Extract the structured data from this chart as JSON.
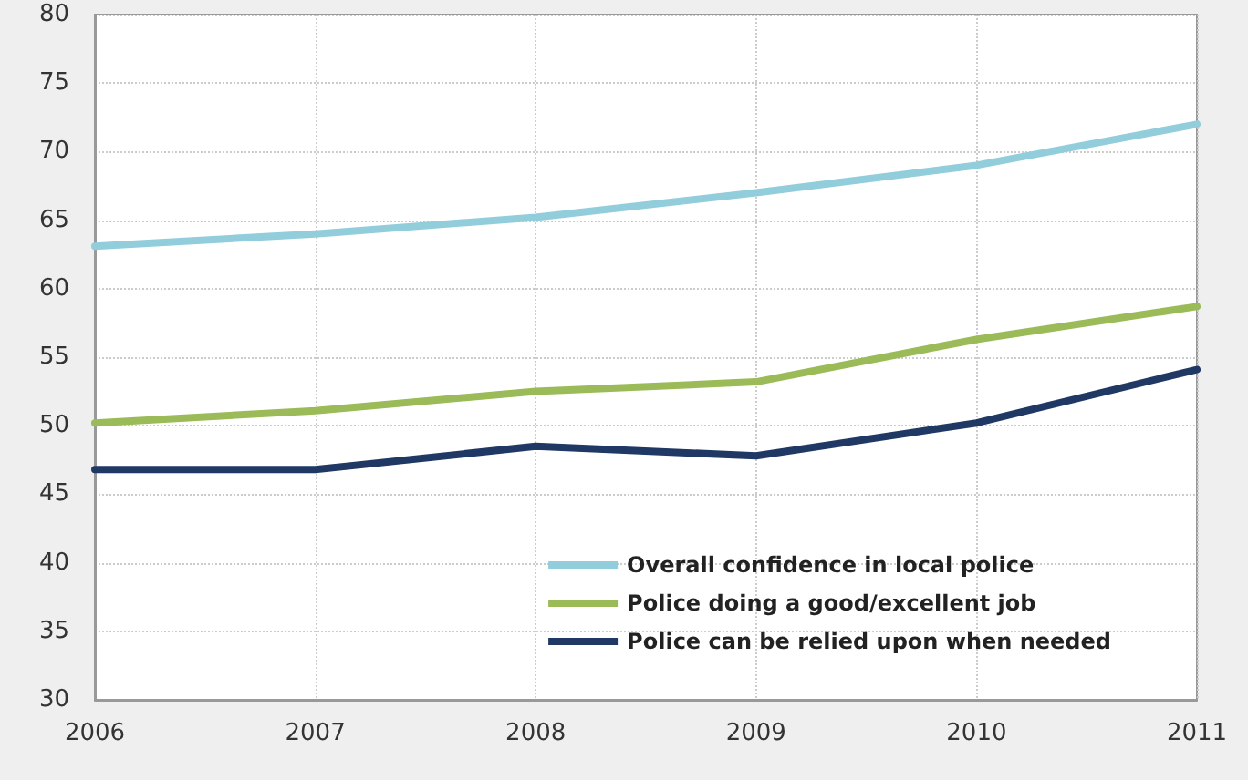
{
  "chart_data": {
    "type": "line",
    "x": [
      2006,
      2007,
      2008,
      2009,
      2010,
      2011
    ],
    "series": [
      {
        "name": "Overall confidence in local police",
        "color": "#92cddc",
        "values": [
          63.1,
          64,
          65.2,
          67,
          69,
          72
        ]
      },
      {
        "name": "Police doing a good/excellent job",
        "color": "#9bbb59",
        "values": [
          50.2,
          51.1,
          52.5,
          53.2,
          56.3,
          58.7
        ]
      },
      {
        "name": "Police can be relied upon when needed",
        "color": "#1f3864",
        "values": [
          46.8,
          46.8,
          48.5,
          47.8,
          50.2,
          54.1
        ]
      }
    ],
    "xlim": [
      2006,
      2011
    ],
    "xticks": [
      2006,
      2007,
      2008,
      2009,
      2010,
      2011
    ],
    "ylim": [
      30,
      80
    ],
    "yticks": [
      30,
      35,
      40,
      45,
      50,
      55,
      60,
      65,
      70,
      75,
      80
    ],
    "grid": true,
    "legend": "bottom right",
    "marker": "none",
    "line_style": "solid"
  }
}
